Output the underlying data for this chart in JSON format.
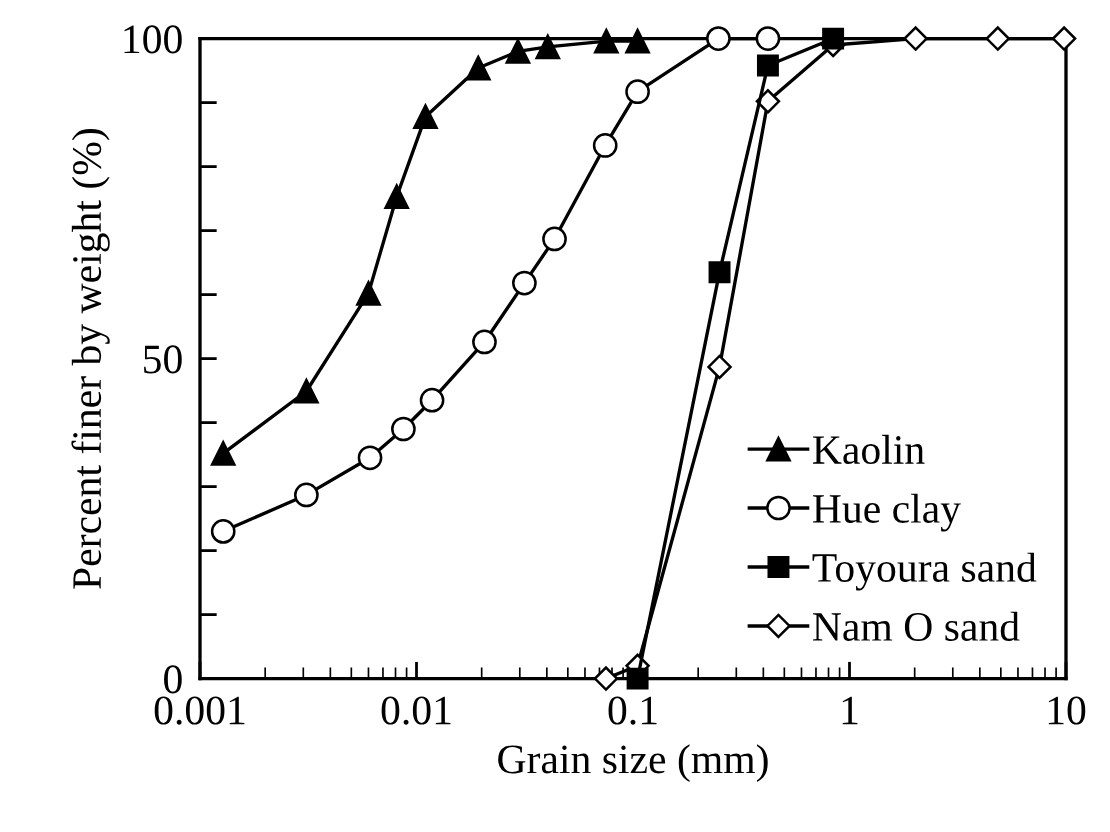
{
  "chart_data": {
    "type": "line",
    "xlabel": "Grain size (mm)",
    "ylabel": "Percent finer by weight (%)",
    "log": "x",
    "xlim": [
      0.001,
      10
    ],
    "xticks": [
      0.001,
      0.01,
      0.1,
      1,
      10
    ],
    "ylim": [
      0,
      100
    ],
    "yticks": [
      0,
      {
        "value": 10,
        "label": null
      },
      {
        "value": 20,
        "label": null
      },
      {
        "value": 30,
        "label": null
      },
      {
        "value": 40,
        "label": null
      },
      50,
      {
        "value": 60,
        "label": null
      },
      {
        "value": 70,
        "label": null
      },
      {
        "value": 80,
        "label": null
      },
      {
        "value": 90,
        "label": null
      },
      100
    ],
    "grid": false,
    "legend": "bottom right",
    "line_style": "solid",
    "series": [
      {
        "name": "Kaolin",
        "color": "#000000",
        "marker": "triangle",
        "x": [
          0.00128,
          0.0031,
          0.006,
          0.0081,
          0.011,
          0.0193,
          0.0294,
          0.0404,
          0.0753,
          0.105
        ],
        "values": [
          35.2,
          44.9,
          60.2,
          75.3,
          87.8,
          95.4,
          98.0,
          98.7,
          99.6,
          99.6
        ]
      },
      {
        "name": "Hue clay",
        "color": "#000000",
        "marker": "circle",
        "x": [
          0.00128,
          0.0031,
          0.0061,
          0.0087,
          0.0118,
          0.0206,
          0.0315,
          0.0434,
          0.0744,
          0.105,
          0.248,
          0.42
        ],
        "values": [
          23.0,
          28.7,
          34.5,
          39.0,
          43.5,
          52.6,
          61.8,
          68.7,
          83.3,
          91.7,
          100,
          100
        ]
      },
      {
        "name": "Toyoura sand",
        "color": "#000000",
        "marker": "square",
        "x": [
          0.105,
          0.251,
          0.42,
          0.84
        ],
        "values": [
          0,
          63.5,
          95.8,
          100
        ]
      },
      {
        "name": "Nam O sand",
        "color": "#000000",
        "marker": "diamond",
        "x": [
          0.075,
          0.105,
          0.251,
          0.42,
          0.84,
          2.02,
          4.84,
          9.8
        ],
        "values": [
          0,
          2,
          48.7,
          90.2,
          99,
          100,
          100,
          100
        ]
      }
    ]
  }
}
